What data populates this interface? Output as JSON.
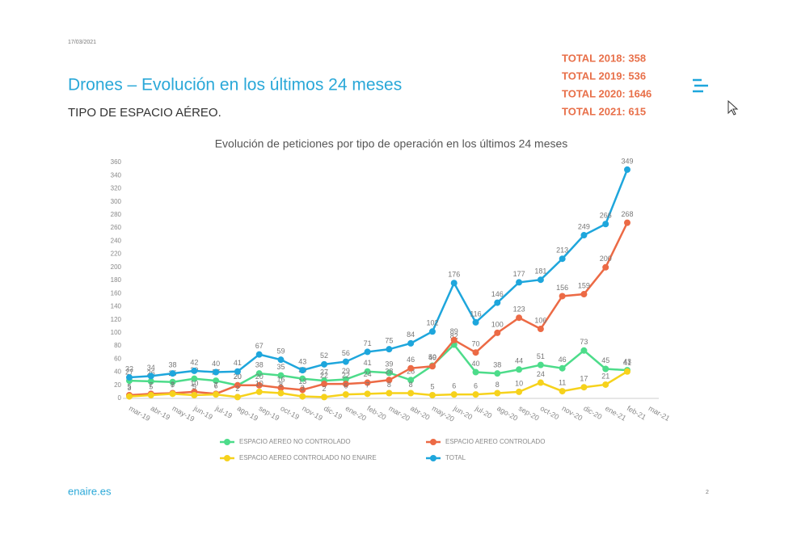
{
  "header": {
    "date": "17/03/2021",
    "title": "Drones – Evolución en los últimos 24 meses",
    "subtitle": "TIPO DE ESPACIO AÉREO.",
    "totals": [
      "TOTAL 2018: 358",
      "TOTAL 2019: 536",
      "TOTAL 2020: 1646",
      "TOTAL 2021: 615"
    ]
  },
  "footer": {
    "site": "enaire.es",
    "page": "2"
  },
  "chart_data": {
    "type": "line",
    "title": "Evolución de peticiones por tipo de operación en los últimos 24 meses",
    "categories": [
      "mar-19",
      "abr-19",
      "may-19",
      "jun-19",
      "jul-19",
      "ago-19",
      "sep-19",
      "oct-19",
      "nov-19",
      "dic-19",
      "ene-20",
      "feb-20",
      "mar-20",
      "abr-20",
      "may-20",
      "jun-20",
      "jul-20",
      "ago-20",
      "sep-20",
      "oct-20",
      "nov-20",
      "dic-20",
      "ene-21",
      "feb-21",
      "mar-21"
    ],
    "series": [
      {
        "name": "ESPACIO AEREO NO CONTROLADO",
        "color": "#4ddc8a",
        "values": [
          27,
          26,
          25,
          30,
          27,
          20,
          38,
          35,
          30,
          27,
          29,
          41,
          39,
          28,
          50,
          82,
          40,
          38,
          44,
          51,
          46,
          73,
          45,
          43,
          null
        ]
      },
      {
        "name": "ESPACIO AEREO CONTROLADO",
        "color": "#ec6a45",
        "values": [
          5,
          7,
          8,
          10,
          7,
          20,
          20,
          16,
          13,
          22,
          22,
          24,
          28,
          46,
          49,
          89,
          70,
          100,
          123,
          106,
          156,
          159,
          200,
          268,
          null
        ]
      },
      {
        "name": "ESPACIO AEREO CONTROLADO NO ENAIRE",
        "color": "#f6d21c",
        "values": [
          3,
          5,
          7,
          5,
          6,
          2,
          10,
          8,
          3,
          2,
          6,
          7,
          8,
          8,
          5,
          6,
          6,
          8,
          10,
          24,
          11,
          17,
          21,
          41,
          null
        ]
      },
      {
        "name": "TOTAL",
        "color": "#1ea6dc",
        "values": [
          32,
          34,
          38,
          42,
          40,
          41,
          67,
          59,
          43,
          52,
          56,
          71,
          75,
          84,
          102,
          176,
          116,
          146,
          177,
          181,
          213,
          249,
          266,
          349,
          null
        ]
      }
    ],
    "ylim": [
      0,
      360
    ],
    "yticks": [
      0,
      20,
      40,
      60,
      80,
      100,
      120,
      140,
      160,
      180,
      200,
      220,
      240,
      260,
      280,
      300,
      320,
      340,
      360
    ],
    "grid": false,
    "legend": "bottom"
  }
}
